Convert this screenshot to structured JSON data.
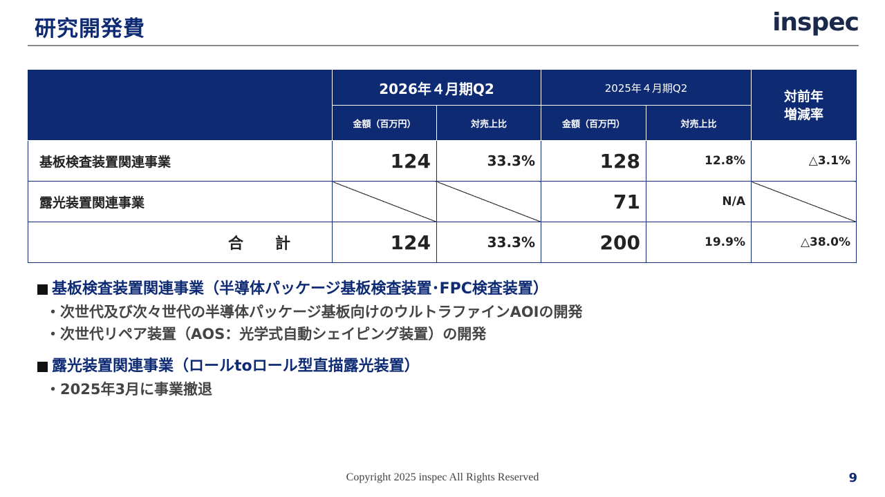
{
  "title": "研究開発費",
  "logo_text": "inspec",
  "table": {
    "header": {
      "period_current": "2026年４月期Q2",
      "period_previous": "2025年４月期Q2",
      "yoy": "対前年\n増減率",
      "amount_label": "金額（百万円）",
      "ratio_label": "対売上比"
    },
    "rows": [
      {
        "segment": "基板検査装置関連事業",
        "cur_amount": "124",
        "cur_ratio": "33.3%",
        "prev_amount": "128",
        "prev_ratio": "12.8%",
        "yoy": "△3.1%"
      },
      {
        "segment": "露光装置関連事業",
        "cur_amount": "",
        "cur_ratio": "",
        "prev_amount": "71",
        "prev_ratio": "N/A",
        "yoy": ""
      },
      {
        "segment": "合　計",
        "cur_amount": "124",
        "cur_ratio": "33.3%",
        "prev_amount": "200",
        "prev_ratio": "19.9%",
        "yoy": "△38.0%"
      }
    ]
  },
  "notes": [
    {
      "heading": "基板検査装置関連事業（半導体パッケージ基板検査装置･FPC検査装置）",
      "items": [
        "・次世代及び次々世代の半導体パッケージ基板向けのウルトラファインAOIの開発",
        "・次世代リペア装置（AOS：光学式自動シェイピング装置）の開発"
      ]
    },
    {
      "heading": "露光装置関連事業（ロールtoロール型直描露光装置）",
      "items": [
        "・2025年3月に事業撤退"
      ]
    }
  ],
  "footer": "Copyright 2025 inspec All Rights Reserved",
  "page_number": "9",
  "colors": {
    "brand_navy": "#0d2a73",
    "header_bg": "#0d2a73"
  }
}
